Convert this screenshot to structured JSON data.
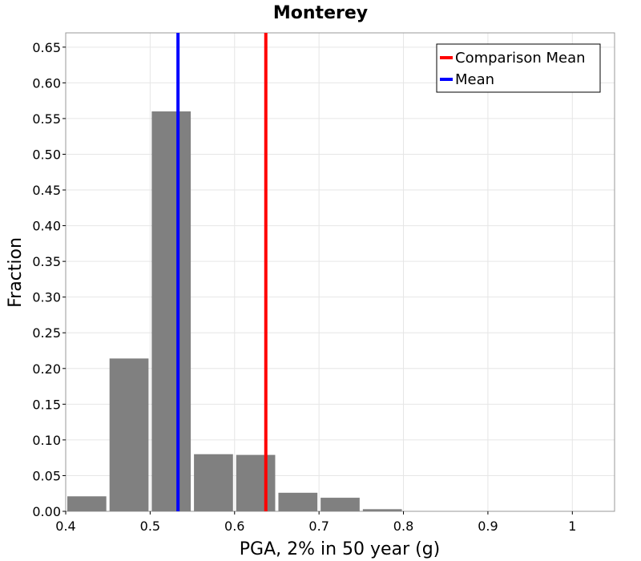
{
  "chart_data": {
    "type": "bar",
    "title": "Monterey",
    "xlabel": "PGA, 2% in 50 year (g)",
    "ylabel": "Fraction",
    "xlim": [
      0.4,
      1.05
    ],
    "ylim": [
      0,
      0.67
    ],
    "x_ticks": [
      0.4,
      0.5,
      0.6,
      0.7,
      0.8,
      0.9,
      1.0
    ],
    "x_tick_labels": [
      "0.4",
      "0.5",
      "0.6",
      "0.7",
      "0.8",
      "0.9",
      "1"
    ],
    "y_ticks": [
      0.0,
      0.05,
      0.1,
      0.15,
      0.2,
      0.25,
      0.3,
      0.35,
      0.4,
      0.45,
      0.5,
      0.55,
      0.6,
      0.65
    ],
    "y_tick_labels": [
      "0.00",
      "0.05",
      "0.10",
      "0.15",
      "0.20",
      "0.25",
      "0.30",
      "0.35",
      "0.40",
      "0.45",
      "0.50",
      "0.55",
      "0.60",
      "0.65"
    ],
    "grid": true,
    "bar_color": "#808080",
    "bins": [
      {
        "center": 0.425,
        "value": 0.021
      },
      {
        "center": 0.475,
        "value": 0.214
      },
      {
        "center": 0.525,
        "value": 0.56
      },
      {
        "center": 0.575,
        "value": 0.08
      },
      {
        "center": 0.625,
        "value": 0.079
      },
      {
        "center": 0.675,
        "value": 0.026
      },
      {
        "center": 0.725,
        "value": 0.019
      },
      {
        "center": 0.775,
        "value": 0.003
      }
    ],
    "bin_width": 0.05,
    "reference_lines": [
      {
        "name": "Comparison Mean",
        "x": 0.637,
        "color": "#ff0000"
      },
      {
        "name": "Mean",
        "x": 0.533,
        "color": "#0000ff"
      }
    ],
    "legend_position": "top-right"
  }
}
